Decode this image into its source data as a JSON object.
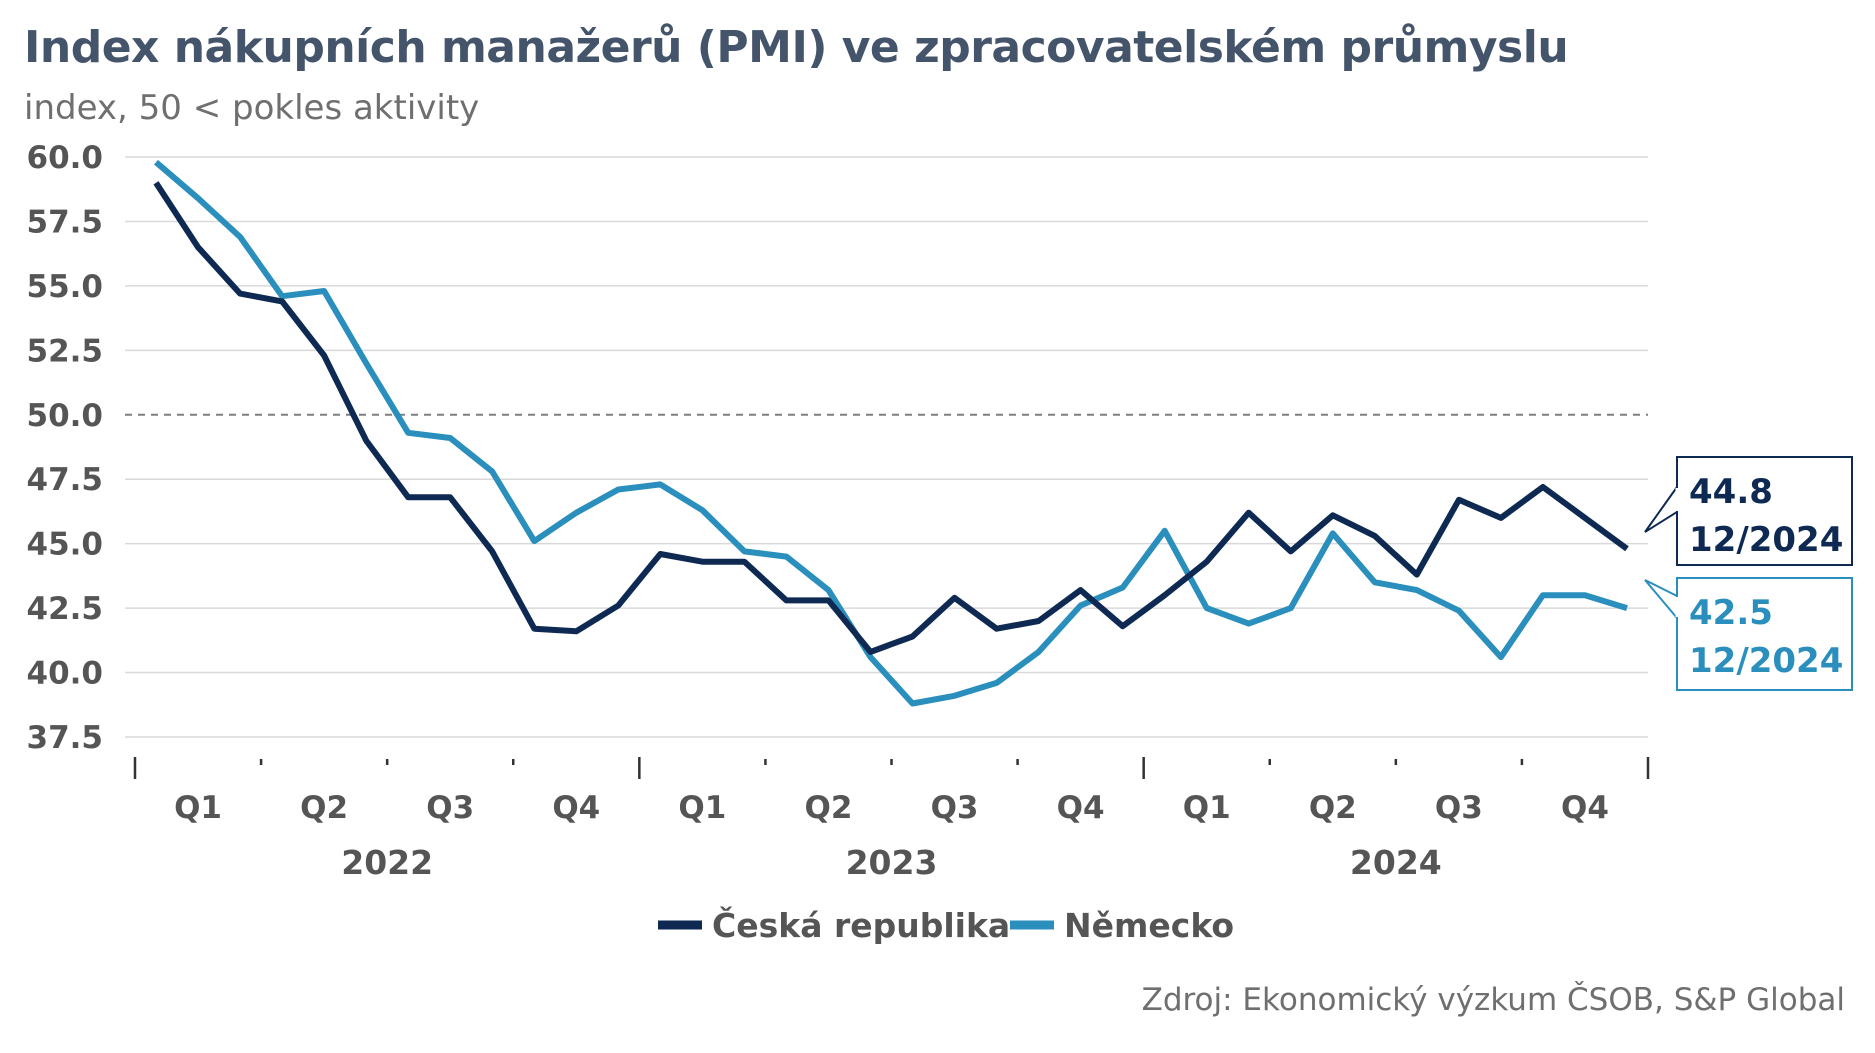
{
  "header": {
    "title": "Index nákupních manažerů (PMI) ve zpracovatelském průmyslu",
    "subtitle": "index, 50 < pokles aktivity"
  },
  "footer": {
    "source": "Zdroj: Ekonomický výzkum ČSOB, S&P Global"
  },
  "colors": {
    "czech": "#0e2a52",
    "germany": "#2a8fbd",
    "grid": "#d9d9d9",
    "reference": "#7f7f7f",
    "axis": "#333333"
  },
  "chart_data": {
    "type": "line",
    "title": "Index nákupních manažerů (PMI) ve zpracovatelském průmyslu",
    "ylabel": "index, 50 < pokles aktivity",
    "ylim": [
      37.5,
      60.0
    ],
    "yticks": [
      "60.0",
      "57.5",
      "55.0",
      "52.5",
      "50.0",
      "47.5",
      "45.0",
      "42.5",
      "40.0",
      "37.5"
    ],
    "reference_line": 50.0,
    "grid": true,
    "legend_position": "bottom",
    "x": [
      "2022-01",
      "2022-02",
      "2022-03",
      "2022-04",
      "2022-05",
      "2022-06",
      "2022-07",
      "2022-08",
      "2022-09",
      "2022-10",
      "2022-11",
      "2022-12",
      "2023-01",
      "2023-02",
      "2023-03",
      "2023-04",
      "2023-05",
      "2023-06",
      "2023-07",
      "2023-08",
      "2023-09",
      "2023-10",
      "2023-11",
      "2023-12",
      "2024-01",
      "2024-02",
      "2024-03",
      "2024-04",
      "2024-05",
      "2024-06",
      "2024-07",
      "2024-08",
      "2024-09",
      "2024-10",
      "2024-11",
      "2024-12"
    ],
    "quarter_labels": [
      "Q1",
      "Q2",
      "Q3",
      "Q4",
      "Q1",
      "Q2",
      "Q3",
      "Q4",
      "Q1",
      "Q2",
      "Q3",
      "Q4"
    ],
    "year_labels": [
      "2022",
      "2023",
      "2024"
    ],
    "series": [
      {
        "name": "Česká republika",
        "values": [
          59.0,
          56.5,
          54.7,
          54.4,
          52.3,
          49.0,
          46.8,
          46.8,
          44.7,
          41.7,
          41.6,
          42.6,
          44.6,
          44.3,
          44.3,
          42.8,
          42.8,
          40.8,
          41.4,
          42.9,
          41.7,
          42.0,
          43.2,
          41.8,
          43.0,
          44.3,
          46.2,
          44.7,
          46.1,
          45.3,
          43.8,
          46.7,
          46.0,
          47.2,
          46.0,
          44.8
        ]
      },
      {
        "name": "Německo",
        "values": [
          59.8,
          58.4,
          56.9,
          54.6,
          54.8,
          52.0,
          49.3,
          49.1,
          47.8,
          45.1,
          46.2,
          47.1,
          47.3,
          46.3,
          44.7,
          44.5,
          43.2,
          40.6,
          38.8,
          39.1,
          39.6,
          40.8,
          42.6,
          43.3,
          45.5,
          42.5,
          41.9,
          42.5,
          45.4,
          43.5,
          43.2,
          42.4,
          40.6,
          43.0,
          43.0,
          42.5
        ]
      }
    ],
    "callouts": [
      {
        "value": "44.8",
        "date": "12/2024"
      },
      {
        "value": "42.5",
        "date": "12/2024"
      }
    ]
  }
}
